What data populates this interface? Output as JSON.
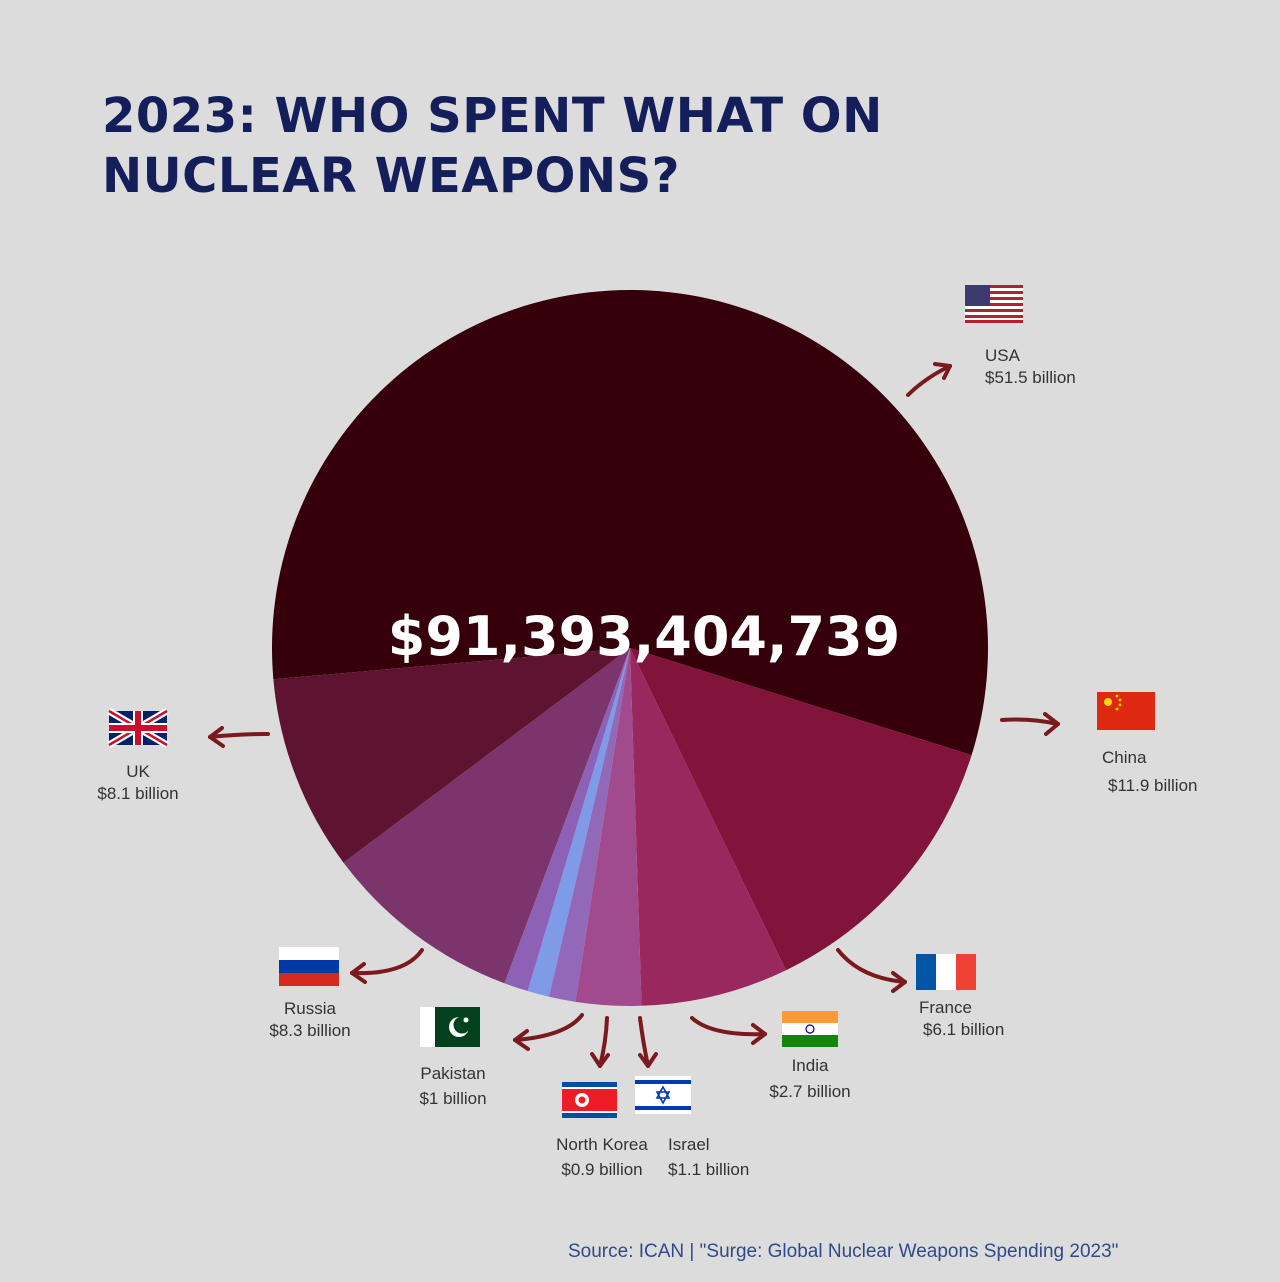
{
  "title_line1": "2023: WHO SPENT WHAT ON",
  "title_line2": "NUCLEAR WEAPONS?",
  "total": "$91,393,404,739",
  "source": "Source: ICAN | \"Surge: Global Nuclear Weapons Spending 2023\"",
  "chart_data": {
    "type": "pie",
    "unit": "billion USD",
    "slices": [
      {
        "name": "USA",
        "label": "$51.5 billion",
        "value": 51.5,
        "color": "#36000a"
      },
      {
        "name": "China",
        "label": "$11.9 billion",
        "value": 11.9,
        "color": "#82133a"
      },
      {
        "name": "France",
        "label": "$6.1 billion",
        "value": 6.1,
        "color": "#98285e"
      },
      {
        "name": "India",
        "label": "$2.7 billion",
        "value": 2.7,
        "color": "#a24a8e"
      },
      {
        "name": "Israel",
        "label": "$1.1 billion",
        "value": 1.1,
        "color": "#9268b8"
      },
      {
        "name": "North Korea",
        "label": "$0.9 billion",
        "value": 0.9,
        "color": "#7f9ae6"
      },
      {
        "name": "Pakistan",
        "label": "$1 billion",
        "value": 1.0,
        "color": "#8d62b6"
      },
      {
        "name": "Russia",
        "label": "$8.3 billion",
        "value": 8.3,
        "color": "#7b356c"
      },
      {
        "name": "UK",
        "label": "$8.1 billion",
        "value": 8.1,
        "color": "#5e1430"
      }
    ]
  },
  "arrow_color": "#7a1a1e"
}
